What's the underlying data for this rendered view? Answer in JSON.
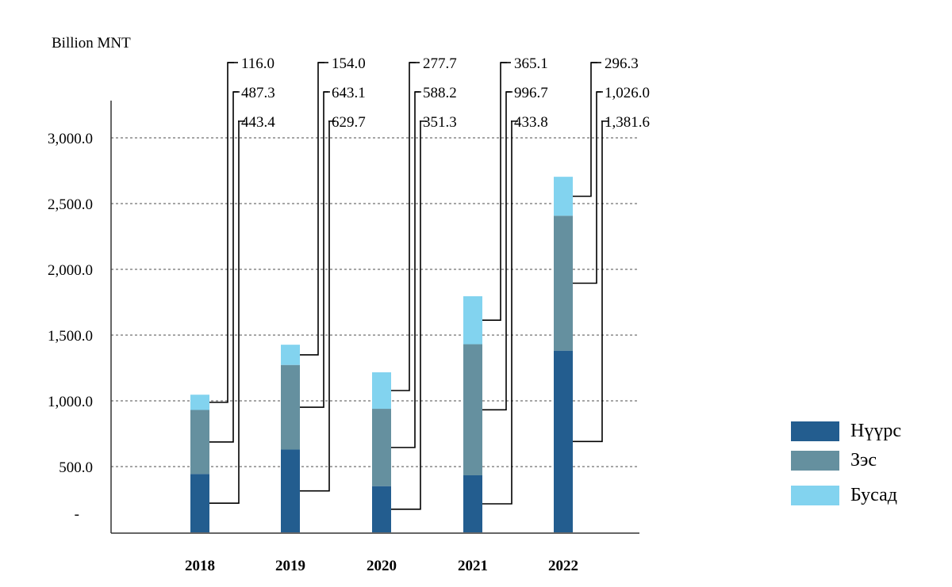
{
  "chart_data": {
    "type": "bar",
    "stacked": true,
    "unit_label": "Billion MNT",
    "categories": [
      "2018",
      "2019",
      "2020",
      "2021",
      "2022"
    ],
    "series": [
      {
        "name": "Нүүрс",
        "color": "#235d8f",
        "values": [
          443.4,
          629.7,
          351.3,
          433.8,
          1381.6
        ],
        "labels": [
          "443.4",
          "629.7",
          "351.3",
          "433.8",
          "1,381.6"
        ]
      },
      {
        "name": "Зэс",
        "color": "#65909f",
        "values": [
          487.3,
          643.1,
          588.2,
          996.7,
          1026.0
        ],
        "labels": [
          "487.3",
          "643.1",
          "588.2",
          "996.7",
          "1,026.0"
        ]
      },
      {
        "name": "Бусад",
        "color": "#82d3ef",
        "values": [
          116.0,
          154.0,
          277.7,
          365.1,
          296.3
        ],
        "labels": [
          "116.0",
          "154.0",
          "277.7",
          "365.1",
          "296.3"
        ]
      }
    ],
    "ylim": [
      0,
      3000
    ],
    "yticks": [
      0,
      500,
      1000,
      1500,
      2000,
      2500,
      3000
    ],
    "ytick_labels": [
      "-",
      "500.0",
      "1,000.0",
      "1,500.0",
      "2,000.0",
      "2,500.0",
      "3,000.0"
    ],
    "grid": true,
    "legend_position": "bottom-right"
  }
}
